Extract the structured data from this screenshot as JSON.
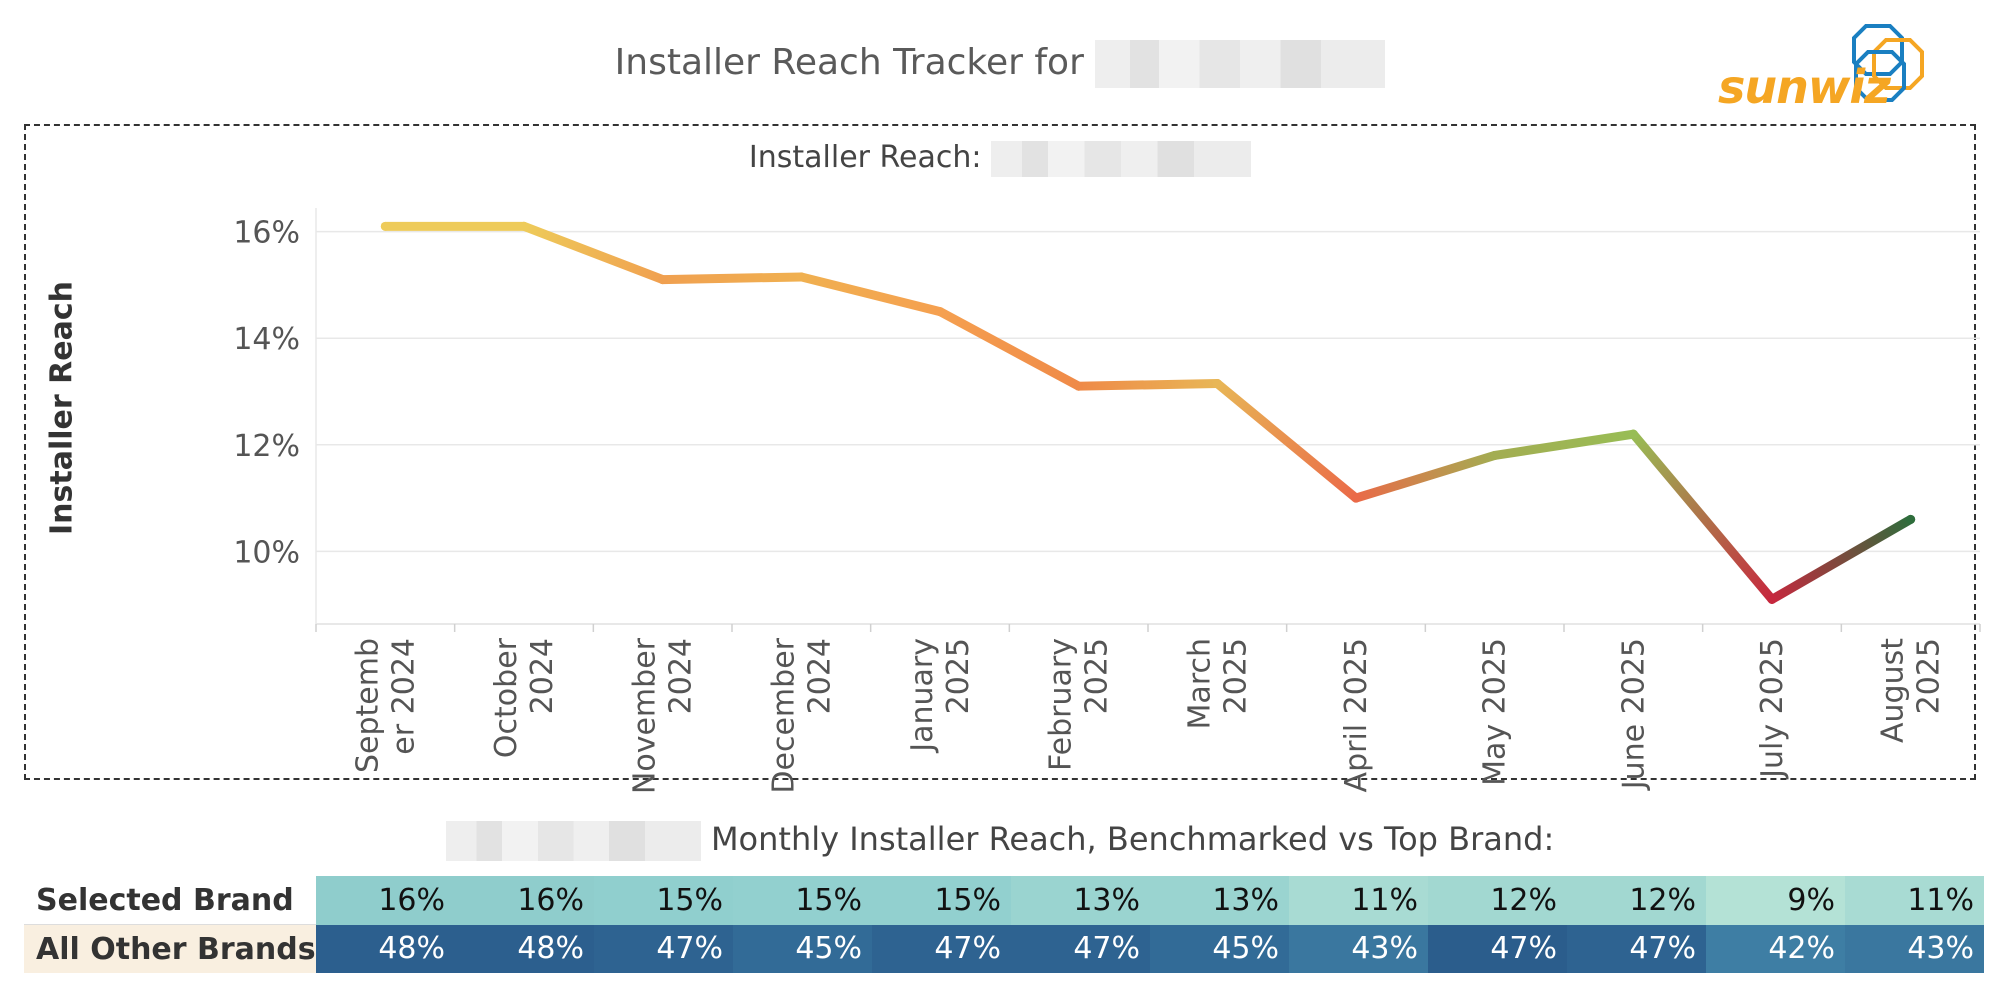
{
  "header": {
    "title": "Installer Reach Tracker for",
    "logo_text": "sunwiz",
    "logo_colors": {
      "text": "#f5a623",
      "blue": "#1a7fc1",
      "orange": "#f5a623"
    }
  },
  "chart_data": {
    "type": "line",
    "title": "Installer Reach:",
    "ylabel": "Installer Reach",
    "xlabel": "",
    "categories": [
      [
        "Septemb",
        "er 2024"
      ],
      [
        "October",
        "2024"
      ],
      [
        "November",
        "2024"
      ],
      [
        "December",
        "2024"
      ],
      [
        "January",
        "2025"
      ],
      [
        "February",
        "2025"
      ],
      [
        "March",
        "2025"
      ],
      [
        "April 2025"
      ],
      [
        "May 2025"
      ],
      [
        "June 2025"
      ],
      [
        "July 2025"
      ],
      [
        "August",
        "2025"
      ]
    ],
    "values": [
      16.1,
      16.1,
      15.1,
      15.15,
      14.5,
      13.1,
      13.15,
      11.0,
      11.8,
      12.2,
      9.1,
      10.6
    ],
    "y_ticks": [
      "10%",
      "12%",
      "14%",
      "16%"
    ],
    "y_tick_values": [
      10,
      12,
      14,
      16
    ],
    "ylim": [
      8.75,
      16.5
    ],
    "grid": true,
    "point_colors": [
      "#eecb5a",
      "#eecb5a",
      "#f0a050",
      "#f0b050",
      "#f5a050",
      "#ef8a48",
      "#e8b656",
      "#ea6a48",
      "#a3ad52",
      "#98bd55",
      "#c6283e",
      "#2f6d3c"
    ]
  },
  "benchmark": {
    "title": "Monthly Installer Reach, Benchmarked vs Top Brand:",
    "rows": [
      {
        "label": "Selected Brand",
        "values": [
          "16%",
          "16%",
          "15%",
          "15%",
          "15%",
          "13%",
          "13%",
          "11%",
          "12%",
          "12%",
          "9%",
          "11%"
        ],
        "colors": [
          "#8fcdcc",
          "#8fcdcc",
          "#90cfce",
          "#92d0cf",
          "#92d0cf",
          "#9ad4d0",
          "#9ad4d0",
          "#a8dbd3",
          "#a2d8d1",
          "#a2d8d1",
          "#b4e2d6",
          "#a8dbd3"
        ]
      },
      {
        "label": "All Other Brands",
        "values": [
          "48%",
          "48%",
          "47%",
          "45%",
          "47%",
          "47%",
          "45%",
          "43%",
          "47%",
          "47%",
          "42%",
          "43%"
        ],
        "colors": [
          "#2c5f8e",
          "#2c5f8e",
          "#2e6391",
          "#326b97",
          "#2e6391",
          "#2e6391",
          "#326b97",
          "#3a779f",
          "#2b5d8c",
          "#2e6391",
          "#3e7ea4",
          "#3a779f"
        ]
      }
    ]
  }
}
